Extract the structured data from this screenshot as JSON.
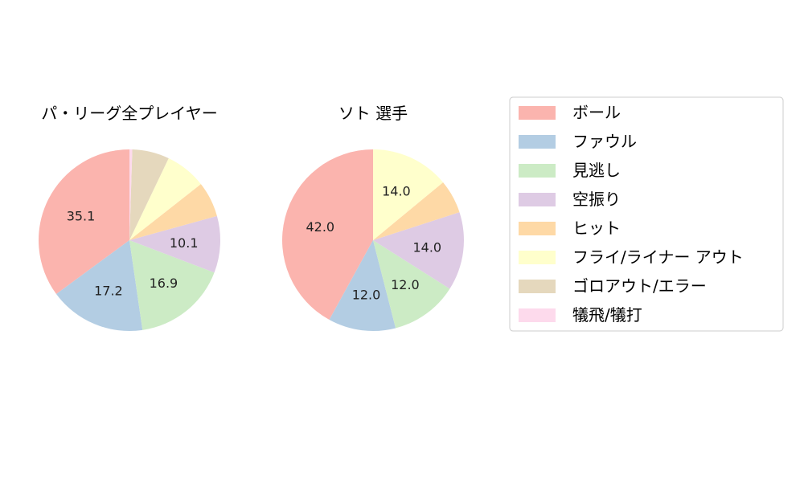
{
  "chart_data": [
    {
      "type": "pie",
      "title": "パ・リーグ全プレイヤー",
      "categories": [
        "ボール",
        "ファウル",
        "見逃し",
        "空振り",
        "ヒット",
        "フライ/ライナー アウト",
        "ゴロアウト/エラー",
        "犠飛/犠打"
      ],
      "values": [
        35.1,
        17.2,
        16.9,
        10.1,
        6.3,
        7.3,
        6.6,
        0.5
      ],
      "data_labels": [
        "35.1",
        "17.2",
        "16.9",
        "10.1",
        "",
        "",
        "",
        ""
      ]
    },
    {
      "type": "pie",
      "title": "ソト  選手",
      "categories": [
        "ボール",
        "ファウル",
        "見逃し",
        "空振り",
        "ヒット",
        "フライ/ライナー アウト",
        "ゴロアウト/エラー",
        "犠飛/犠打"
      ],
      "values": [
        42.0,
        12.0,
        12.0,
        14.0,
        6.0,
        14.0,
        0,
        0
      ],
      "data_labels": [
        "42.0",
        "12.0",
        "12.0",
        "14.0",
        "",
        "14.0",
        "",
        ""
      ]
    }
  ],
  "legend": {
    "placement": "right",
    "items": [
      {
        "label": "ボール",
        "color": "#fbb4ae"
      },
      {
        "label": "ファウル",
        "color": "#b3cde3"
      },
      {
        "label": "見逃し",
        "color": "#ccebc5"
      },
      {
        "label": "空振り",
        "color": "#decbe4"
      },
      {
        "label": "ヒット",
        "color": "#fed9a6"
      },
      {
        "label": "フライ/ライナー アウト",
        "color": "#ffffcc"
      },
      {
        "label": "ゴロアウト/エラー",
        "color": "#e5d8bd"
      },
      {
        "label": "犠飛/犠打",
        "color": "#fddaec"
      }
    ]
  }
}
